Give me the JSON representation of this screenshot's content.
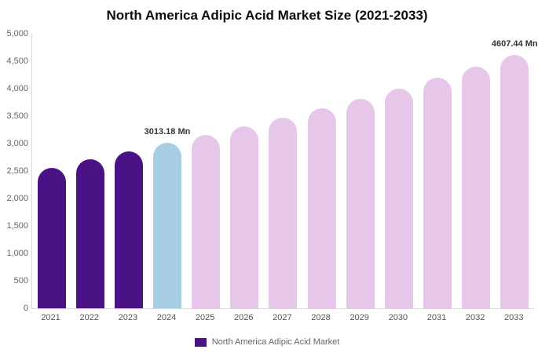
{
  "title": "North America Adipic Acid Market Size (2021-2033)",
  "legend": {
    "label": "North America Adipic Acid Market",
    "swatch_color": "#4b1285"
  },
  "colors": {
    "historical_bar": "#4b1285",
    "current_bar": "#a8cee4",
    "forecast_bar": "#e7c7e9",
    "axis_text": "#666666",
    "annotation_text": "#333333",
    "title_text": "#0d0d0d",
    "axis_line": "#d9d9d9"
  },
  "chart_data": {
    "type": "bar",
    "title": "North America Adipic Acid Market Size (2021-2033)",
    "unit": "Mn",
    "categories": [
      "2021",
      "2022",
      "2023",
      "2024",
      "2025",
      "2026",
      "2027",
      "2028",
      "2029",
      "2030",
      "2031",
      "2032",
      "2033"
    ],
    "values": [
      2560,
      2710,
      2860,
      3013.18,
      3160,
      3310,
      3470,
      3640,
      3815,
      4000,
      4195,
      4400,
      4607.44
    ],
    "bar_colors": [
      "#4b1285",
      "#4b1285",
      "#4b1285",
      "#a8cee4",
      "#e7c7e9",
      "#e7c7e9",
      "#e7c7e9",
      "#e7c7e9",
      "#e7c7e9",
      "#e7c7e9",
      "#e7c7e9",
      "#e7c7e9",
      "#e7c7e9"
    ],
    "ylim": [
      0,
      5000
    ],
    "ytick_step": 500,
    "ytick_labels": [
      "0",
      "500",
      "1,000",
      "1,500",
      "2,000",
      "2,500",
      "3,000",
      "3,500",
      "4,000",
      "4,500",
      "5,000"
    ],
    "annotations": [
      {
        "category": "2024",
        "text": "3013.18 Mn"
      },
      {
        "category": "2033",
        "text": "4607.44 Mn"
      }
    ],
    "legend_entries": [
      "North America Adipic Acid Market"
    ],
    "grid": false,
    "legend_position": "bottom-center"
  }
}
